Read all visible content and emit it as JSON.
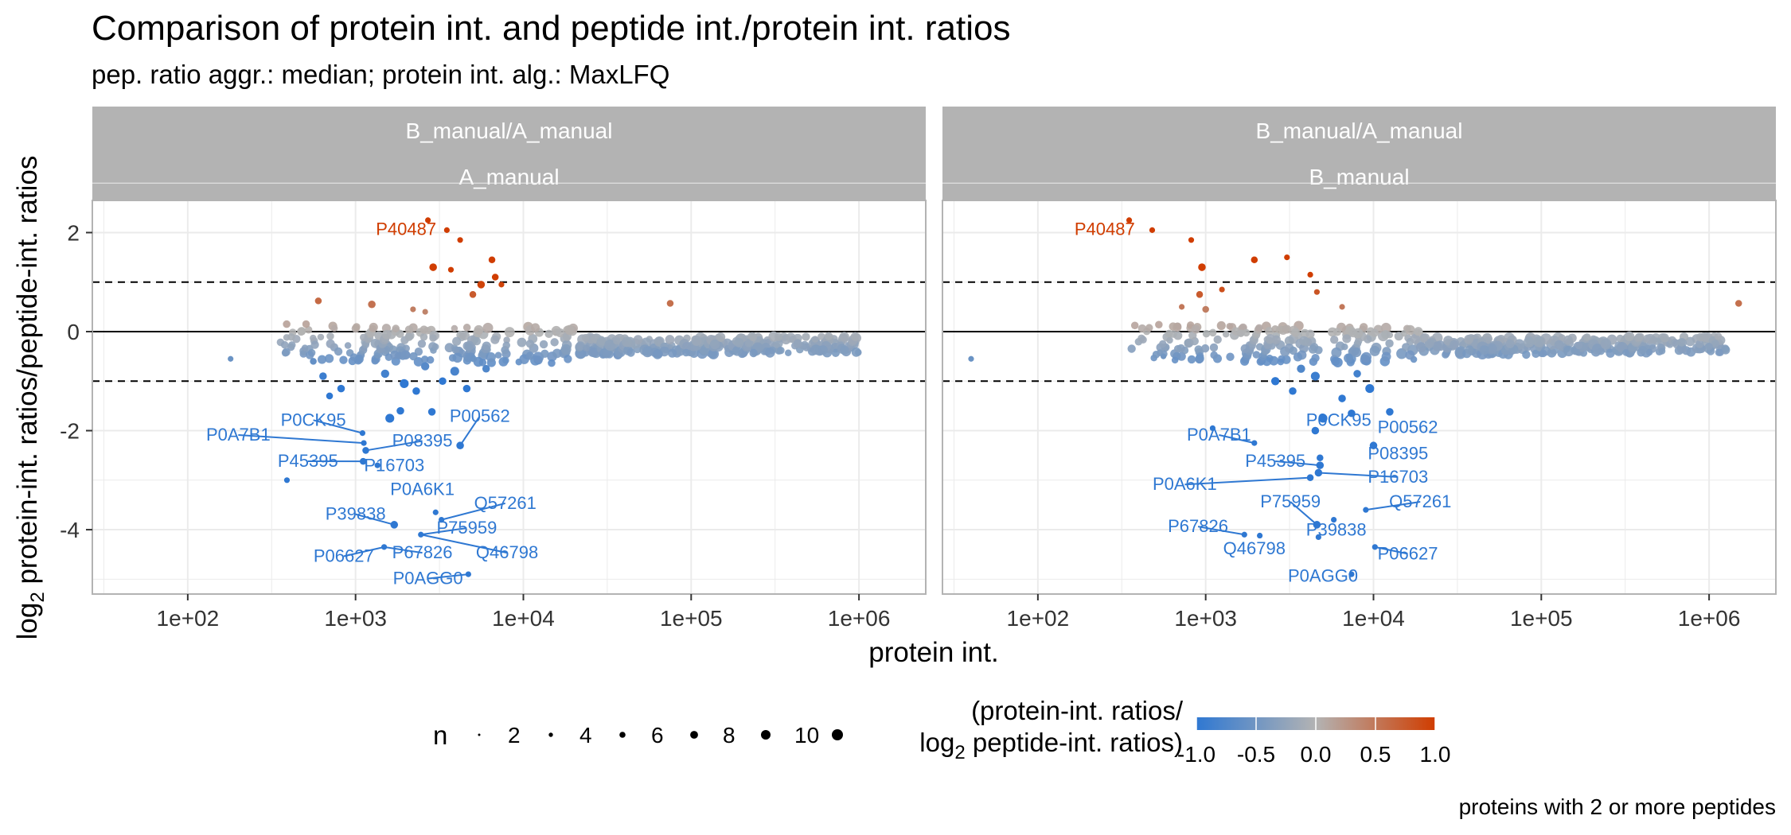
{
  "title": "Comparison of protein int. and peptide int./protein int. ratios",
  "subtitle": "pep. ratio aggr.: median; protein int. alg.: MaxLFQ",
  "caption": "proteins with 2 or more peptides",
  "colors": {
    "low": "#2f78d2",
    "mid": "#b3b3b3",
    "high": "#d03d00",
    "strip_bg": "#b3b3b3",
    "grid": "#ebebeb",
    "panel_border": "#b3b3b3"
  },
  "chart_data": {
    "type": "scatter",
    "xlabel": "protein int.",
    "ylabel_prefix": "log",
    "ylabel_sub": "2",
    "ylabel_rest": " protein-int. ratios/peptide-int. ratios",
    "xscale": "log10",
    "xlim": [
      27,
      2500000
    ],
    "ylim": [
      -5.3,
      2.65
    ],
    "x_ticks": [
      100,
      1000,
      10000,
      100000,
      1000000
    ],
    "x_tick_labels": [
      "1e+02",
      "1e+03",
      "1e+04",
      "1e+05",
      "1e+06"
    ],
    "y_ticks": [
      2,
      0,
      -2,
      -4
    ],
    "y_tick_labels": [
      "2",
      "0",
      "-2",
      "-4"
    ],
    "hlines_solid": [
      0
    ],
    "hlines_dashed": [
      1,
      -1
    ],
    "grid": true,
    "legend_size": {
      "title": "n",
      "values": [
        2,
        4,
        6,
        8,
        10
      ],
      "labels": [
        "2",
        "4",
        "6",
        "8",
        "10"
      ],
      "placement": "bottom"
    },
    "legend_color": {
      "title_line1": "(protein-int. ratios/",
      "title_prefix": "log",
      "title_sub": "2",
      "title_line2": " peptide-int. ratios)",
      "values": [
        -1,
        -0.5,
        0,
        0.5,
        1
      ],
      "labels": [
        "-1.0",
        "-0.5",
        "0.0",
        "0.5",
        "1.0"
      ],
      "placement": "bottom"
    },
    "panels": [
      {
        "strip_top": "B_manual/A_manual",
        "strip_bottom": "A_manual",
        "points": [
          {
            "x": 180,
            "y": -0.55,
            "n": 1
          },
          {
            "x": 600,
            "y": 0.62,
            "n": 2
          },
          {
            "x": 560,
            "y": -0.6,
            "n": 2
          },
          {
            "x": 640,
            "y": -0.9,
            "n": 3
          },
          {
            "x": 700,
            "y": -1.3,
            "n": 2
          },
          {
            "x": 820,
            "y": -1.15,
            "n": 3
          },
          {
            "x": 1250,
            "y": 0.55,
            "n": 3
          },
          {
            "x": 1600,
            "y": -1.75,
            "n": 5
          },
          {
            "x": 1850,
            "y": -1.6,
            "n": 3
          },
          {
            "x": 2300,
            "y": -1.2,
            "n": 3
          },
          {
            "x": 2850,
            "y": -1.62,
            "n": 3
          },
          {
            "x": 1500,
            "y": -0.85,
            "n": 4
          },
          {
            "x": 1950,
            "y": -1.05,
            "n": 5
          },
          {
            "x": 3300,
            "y": -1.0,
            "n": 3
          },
          {
            "x": 4600,
            "y": -1.15,
            "n": 3
          },
          {
            "x": 2600,
            "y": -0.7,
            "n": 4
          },
          {
            "x": 3900,
            "y": -0.8,
            "n": 5
          },
          {
            "x": 6000,
            "y": -0.75,
            "n": 3
          },
          {
            "x": 2700,
            "y": 2.25,
            "n": 1
          },
          {
            "x": 3500,
            "y": 2.05,
            "n": 1
          },
          {
            "x": 2900,
            "y": 1.3,
            "n": 3
          },
          {
            "x": 3700,
            "y": 1.25,
            "n": 1
          },
          {
            "x": 4200,
            "y": 1.85,
            "n": 1
          },
          {
            "x": 6500,
            "y": 1.45,
            "n": 2
          },
          {
            "x": 5600,
            "y": 0.95,
            "n": 3
          },
          {
            "x": 6800,
            "y": 1.1,
            "n": 2
          },
          {
            "x": 5000,
            "y": 0.75,
            "n": 2
          },
          {
            "x": 7400,
            "y": 0.95,
            "n": 1
          },
          {
            "x": 2200,
            "y": 0.45,
            "n": 1
          },
          {
            "x": 2600,
            "y": 0.4,
            "n": 1
          },
          {
            "x": 75000,
            "y": 0.57,
            "n": 2
          },
          {
            "x": 1100,
            "y": -2.05,
            "n": 1
          },
          {
            "x": 1120,
            "y": -2.25,
            "n": 1
          },
          {
            "x": 1150,
            "y": -2.4,
            "n": 2
          },
          {
            "x": 1110,
            "y": -2.62,
            "n": 2
          },
          {
            "x": 1350,
            "y": -2.7,
            "n": 1
          },
          {
            "x": 4200,
            "y": -2.3,
            "n": 3
          },
          {
            "x": 3000,
            "y": -3.65,
            "n": 1
          },
          {
            "x": 3250,
            "y": -3.8,
            "n": 1
          },
          {
            "x": 1700,
            "y": -3.9,
            "n": 3
          },
          {
            "x": 2450,
            "y": -4.1,
            "n": 1
          },
          {
            "x": 1480,
            "y": -4.35,
            "n": 1
          },
          {
            "x": 4700,
            "y": -4.9,
            "n": 1
          },
          {
            "x": 390,
            "y": -3.0,
            "n": 1
          }
        ],
        "labels": [
          {
            "text": "P40487",
            "x": 2000,
            "y": 1.95,
            "px": 2700,
            "py": 2.25,
            "dir": "up"
          },
          {
            "text": "P0CK95",
            "x": 560,
            "y": -1.9,
            "px": 1100,
            "py": -2.05,
            "dir": "down"
          },
          {
            "text": "P0A7B1",
            "x": 200,
            "y": -2.2,
            "px": 1120,
            "py": -2.25,
            "dir": "down"
          },
          {
            "text": "P08395",
            "x": 2500,
            "y": -2.32,
            "px": 1150,
            "py": -2.4,
            "dir": "down"
          },
          {
            "text": "P00562",
            "x": 5500,
            "y": -1.82,
            "px": 4200,
            "py": -2.3,
            "dir": "down"
          },
          {
            "text": "P45395",
            "x": 520,
            "y": -2.73,
            "px": 1110,
            "py": -2.62,
            "dir": "down"
          },
          {
            "text": "P16703",
            "x": 1700,
            "y": -2.82,
            "px": 1350,
            "py": -2.7,
            "dir": "down"
          },
          {
            "text": "P0A6K1",
            "x": 2500,
            "y": -3.3,
            "px": 3000,
            "py": -3.65,
            "dir": "down"
          },
          {
            "text": "Q57261",
            "x": 7800,
            "y": -3.58,
            "px": 3250,
            "py": -3.8,
            "dir": "down"
          },
          {
            "text": "P39838",
            "x": 1000,
            "y": -3.8,
            "px": 1700,
            "py": -3.9,
            "dir": "down"
          },
          {
            "text": "P75959",
            "x": 4600,
            "y": -4.08,
            "px": 2450,
            "py": -4.1,
            "dir": "down"
          },
          {
            "text": "P67826",
            "x": 2500,
            "y": -4.58,
            "px": 1480,
            "py": -4.35,
            "dir": "down"
          },
          {
            "text": "Q46798",
            "x": 8000,
            "y": -4.58,
            "px": 2450,
            "py": -4.1,
            "dir": "down"
          },
          {
            "text": "P06627",
            "x": 850,
            "y": -4.65,
            "px": 1480,
            "py": -4.35,
            "dir": "down"
          },
          {
            "text": "P0AGG0",
            "x": 2700,
            "y": -5.1,
            "px": 4700,
            "py": -4.9,
            "dir": "down"
          }
        ]
      },
      {
        "strip_top": "B_manual/A_manual",
        "strip_bottom": "B_manual",
        "points": [
          {
            "x": 40,
            "y": -0.55,
            "n": 1
          },
          {
            "x": 560,
            "y": -0.5,
            "n": 1
          },
          {
            "x": 720,
            "y": 0.5,
            "n": 1
          },
          {
            "x": 950,
            "y": 1.3,
            "n": 3
          },
          {
            "x": 920,
            "y": 0.75,
            "n": 2
          },
          {
            "x": 1000,
            "y": 0.45,
            "n": 2
          },
          {
            "x": 1250,
            "y": 0.85,
            "n": 1
          },
          {
            "x": 1950,
            "y": 1.45,
            "n": 2
          },
          {
            "x": 3050,
            "y": 1.5,
            "n": 1
          },
          {
            "x": 820,
            "y": 1.85,
            "n": 1
          },
          {
            "x": 350,
            "y": 2.25,
            "n": 1
          },
          {
            "x": 480,
            "y": 2.05,
            "n": 1
          },
          {
            "x": 4200,
            "y": 1.15,
            "n": 1
          },
          {
            "x": 4600,
            "y": 0.8,
            "n": 1
          },
          {
            "x": 6500,
            "y": 0.5,
            "n": 1
          },
          {
            "x": 1500000,
            "y": 0.57,
            "n": 2
          },
          {
            "x": 2600,
            "y": -1.0,
            "n": 4
          },
          {
            "x": 3300,
            "y": -1.2,
            "n": 3
          },
          {
            "x": 4500,
            "y": -0.9,
            "n": 5
          },
          {
            "x": 6500,
            "y": -1.35,
            "n": 3
          },
          {
            "x": 9500,
            "y": -1.15,
            "n": 5
          },
          {
            "x": 8000,
            "y": -0.85,
            "n": 3
          },
          {
            "x": 3700,
            "y": -0.75,
            "n": 4
          },
          {
            "x": 5000,
            "y": -1.75,
            "n": 5
          },
          {
            "x": 7400,
            "y": -1.65,
            "n": 3
          },
          {
            "x": 12500,
            "y": -1.62,
            "n": 3
          },
          {
            "x": 4500,
            "y": -2.0,
            "n": 3
          },
          {
            "x": 1100,
            "y": -1.95,
            "n": 1
          },
          {
            "x": 1950,
            "y": -2.25,
            "n": 1
          },
          {
            "x": 10000,
            "y": -2.3,
            "n": 3
          },
          {
            "x": 4800,
            "y": -2.55,
            "n": 2
          },
          {
            "x": 4800,
            "y": -2.7,
            "n": 3
          },
          {
            "x": 4700,
            "y": -2.85,
            "n": 3
          },
          {
            "x": 4200,
            "y": -2.95,
            "n": 2
          },
          {
            "x": 9000,
            "y": -3.6,
            "n": 1
          },
          {
            "x": 4600,
            "y": -3.9,
            "n": 3
          },
          {
            "x": 5800,
            "y": -3.8,
            "n": 1
          },
          {
            "x": 1700,
            "y": -4.1,
            "n": 1
          },
          {
            "x": 2100,
            "y": -4.12,
            "n": 1
          },
          {
            "x": 4700,
            "y": -4.15,
            "n": 1
          },
          {
            "x": 10200,
            "y": -4.35,
            "n": 1
          },
          {
            "x": 7400,
            "y": -4.9,
            "n": 1
          }
        ],
        "labels": [
          {
            "text": "P40487",
            "x": 250,
            "y": 1.95,
            "px": 350,
            "py": 2.25,
            "dir": "up"
          },
          {
            "text": "P0CK95",
            "x": 6200,
            "y": -1.9,
            "px": 4500,
            "py": -2.0,
            "dir": "down"
          },
          {
            "text": "P00562",
            "x": 16000,
            "y": -2.05,
            "px": 12500,
            "py": -1.62,
            "dir": "down"
          },
          {
            "text": "P0A7B1",
            "x": 1200,
            "y": -2.2,
            "px": 1950,
            "py": -2.25,
            "dir": "down"
          },
          {
            "text": "P08395",
            "x": 14000,
            "y": -2.58,
            "px": 10000,
            "py": -2.3,
            "dir": "down"
          },
          {
            "text": "P45395",
            "x": 2600,
            "y": -2.73,
            "px": 4800,
            "py": -2.7,
            "dir": "down"
          },
          {
            "text": "P16703",
            "x": 14000,
            "y": -3.05,
            "px": 4700,
            "py": -2.85,
            "dir": "down"
          },
          {
            "text": "P0A6K1",
            "x": 750,
            "y": -3.2,
            "px": 4200,
            "py": -2.95,
            "dir": "down"
          },
          {
            "text": "P75959",
            "x": 3200,
            "y": -3.55,
            "px": 4600,
            "py": -3.9,
            "dir": "down"
          },
          {
            "text": "Q57261",
            "x": 19000,
            "y": -3.55,
            "px": 9000,
            "py": -3.6,
            "dir": "down"
          },
          {
            "text": "P67826",
            "x": 900,
            "y": -4.05,
            "px": 1700,
            "py": -4.1,
            "dir": "down"
          },
          {
            "text": "P39838",
            "x": 6000,
            "y": -4.12,
            "px": 4600,
            "py": -3.9,
            "dir": "down"
          },
          {
            "text": "Q46798",
            "x": 1950,
            "y": -4.5,
            "px": 2100,
            "py": -4.12,
            "dir": "down"
          },
          {
            "text": "P06627",
            "x": 16000,
            "y": -4.6,
            "px": 10200,
            "py": -4.35,
            "dir": "down"
          },
          {
            "text": "P0AGG0",
            "x": 5000,
            "y": -5.05,
            "px": 7400,
            "py": -4.9,
            "dir": "down"
          }
        ]
      }
    ]
  }
}
